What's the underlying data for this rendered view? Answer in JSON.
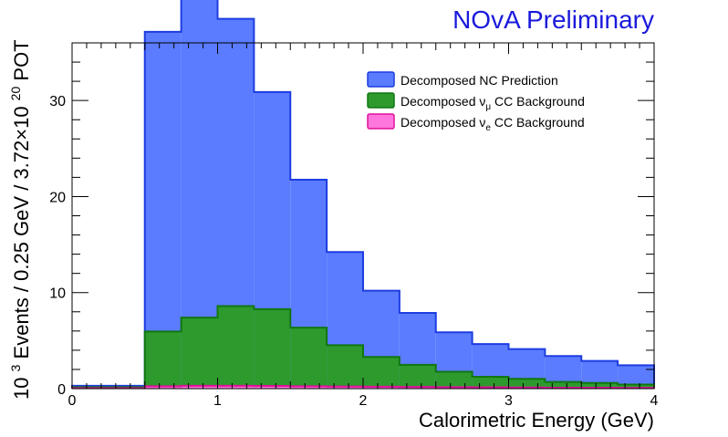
{
  "chart_data": {
    "type": "area",
    "subtype": "stacked-step-histogram",
    "watermark": "NOvA Preliminary",
    "xlabel": "Calorimetric Energy (GeV)",
    "ylabel": {
      "base1": "10",
      "exp1": "3",
      "mid": " Events / 0.25 GeV / 3.72×10",
      "exp2": "20",
      "tail": " POT"
    },
    "xlim": [
      0,
      4
    ],
    "ylim": [
      0,
      36
    ],
    "xticks": [
      0,
      1,
      2,
      3,
      4
    ],
    "yticks": [
      0,
      10,
      20,
      30
    ],
    "x_tick_labels": [
      "0",
      "1",
      "2",
      "3",
      "4"
    ],
    "y_tick_labels": [
      "0",
      "10",
      "20",
      "30"
    ],
    "bin_edges": [
      0,
      0.25,
      0.5,
      0.75,
      1.0,
      1.25,
      1.5,
      1.75,
      2.0,
      2.25,
      2.5,
      2.75,
      3.0,
      3.25,
      3.5,
      3.75,
      4.0
    ],
    "grid": false,
    "legend_position": "top-right",
    "series": [
      {
        "key": "nc",
        "name": "Decomposed NC Prediction",
        "legend": {
          "pre": "Decomposed NC Prediction",
          "sym": "",
          "sub": "",
          "post": ""
        },
        "fill": "#5b7cff",
        "stroke": "#1d3de0",
        "values": [
          0.15,
          0.15,
          31.2,
          34.2,
          29.9,
          22.6,
          15.4,
          9.7,
          6.9,
          5.4,
          4.1,
          3.4,
          3.1,
          2.7,
          2.3,
          2.0
        ]
      },
      {
        "key": "numu",
        "name": "Decomposed νμ CC Background",
        "legend": {
          "pre": "Decomposed ",
          "sym": "ν",
          "sub": "μ",
          "post": " CC Background"
        },
        "fill": "#2e9a2e",
        "stroke": "#117711",
        "values": [
          0.1,
          0.1,
          5.7,
          7.1,
          8.3,
          8.0,
          6.1,
          4.3,
          3.1,
          2.3,
          1.6,
          1.1,
          0.9,
          0.6,
          0.5,
          0.35
        ]
      },
      {
        "key": "nue",
        "name": "Decomposed νe CC Background",
        "legend": {
          "pre": "Decomposed ",
          "sym": "ν",
          "sub": "e",
          "post": " CC Background"
        },
        "fill": "#ff77dd",
        "stroke": "#e0109a",
        "values": [
          0.05,
          0.05,
          0.25,
          0.3,
          0.3,
          0.28,
          0.25,
          0.22,
          0.2,
          0.18,
          0.16,
          0.14,
          0.12,
          0.1,
          0.09,
          0.08
        ]
      }
    ]
  }
}
